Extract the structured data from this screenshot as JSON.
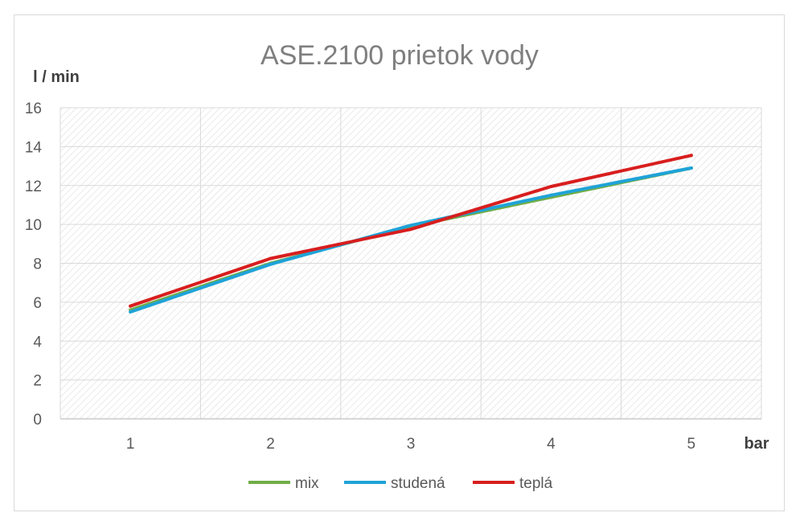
{
  "chart_data": {
    "type": "line",
    "title": "ASE.2100 prietok vody",
    "ylabel": "l / min",
    "xlabel": "bar",
    "categories": [
      "1",
      "2",
      "3",
      "4",
      "5"
    ],
    "ylim": [
      0,
      16
    ],
    "yticks": [
      "0",
      "2",
      "4",
      "6",
      "8",
      "10",
      "12",
      "14",
      "16"
    ],
    "grid": true,
    "legend_position": "bottom",
    "series": [
      {
        "name": "mix",
        "color": "#70ad47",
        "values": [
          5.6,
          8.0,
          9.9,
          11.4,
          12.9
        ]
      },
      {
        "name": "studená",
        "color": "#1fa3d8",
        "values": [
          5.5,
          7.95,
          9.95,
          11.5,
          12.9
        ]
      },
      {
        "name": "teplá",
        "color": "#d81e1e",
        "values": [
          5.8,
          8.25,
          9.75,
          11.95,
          13.55
        ]
      }
    ]
  }
}
